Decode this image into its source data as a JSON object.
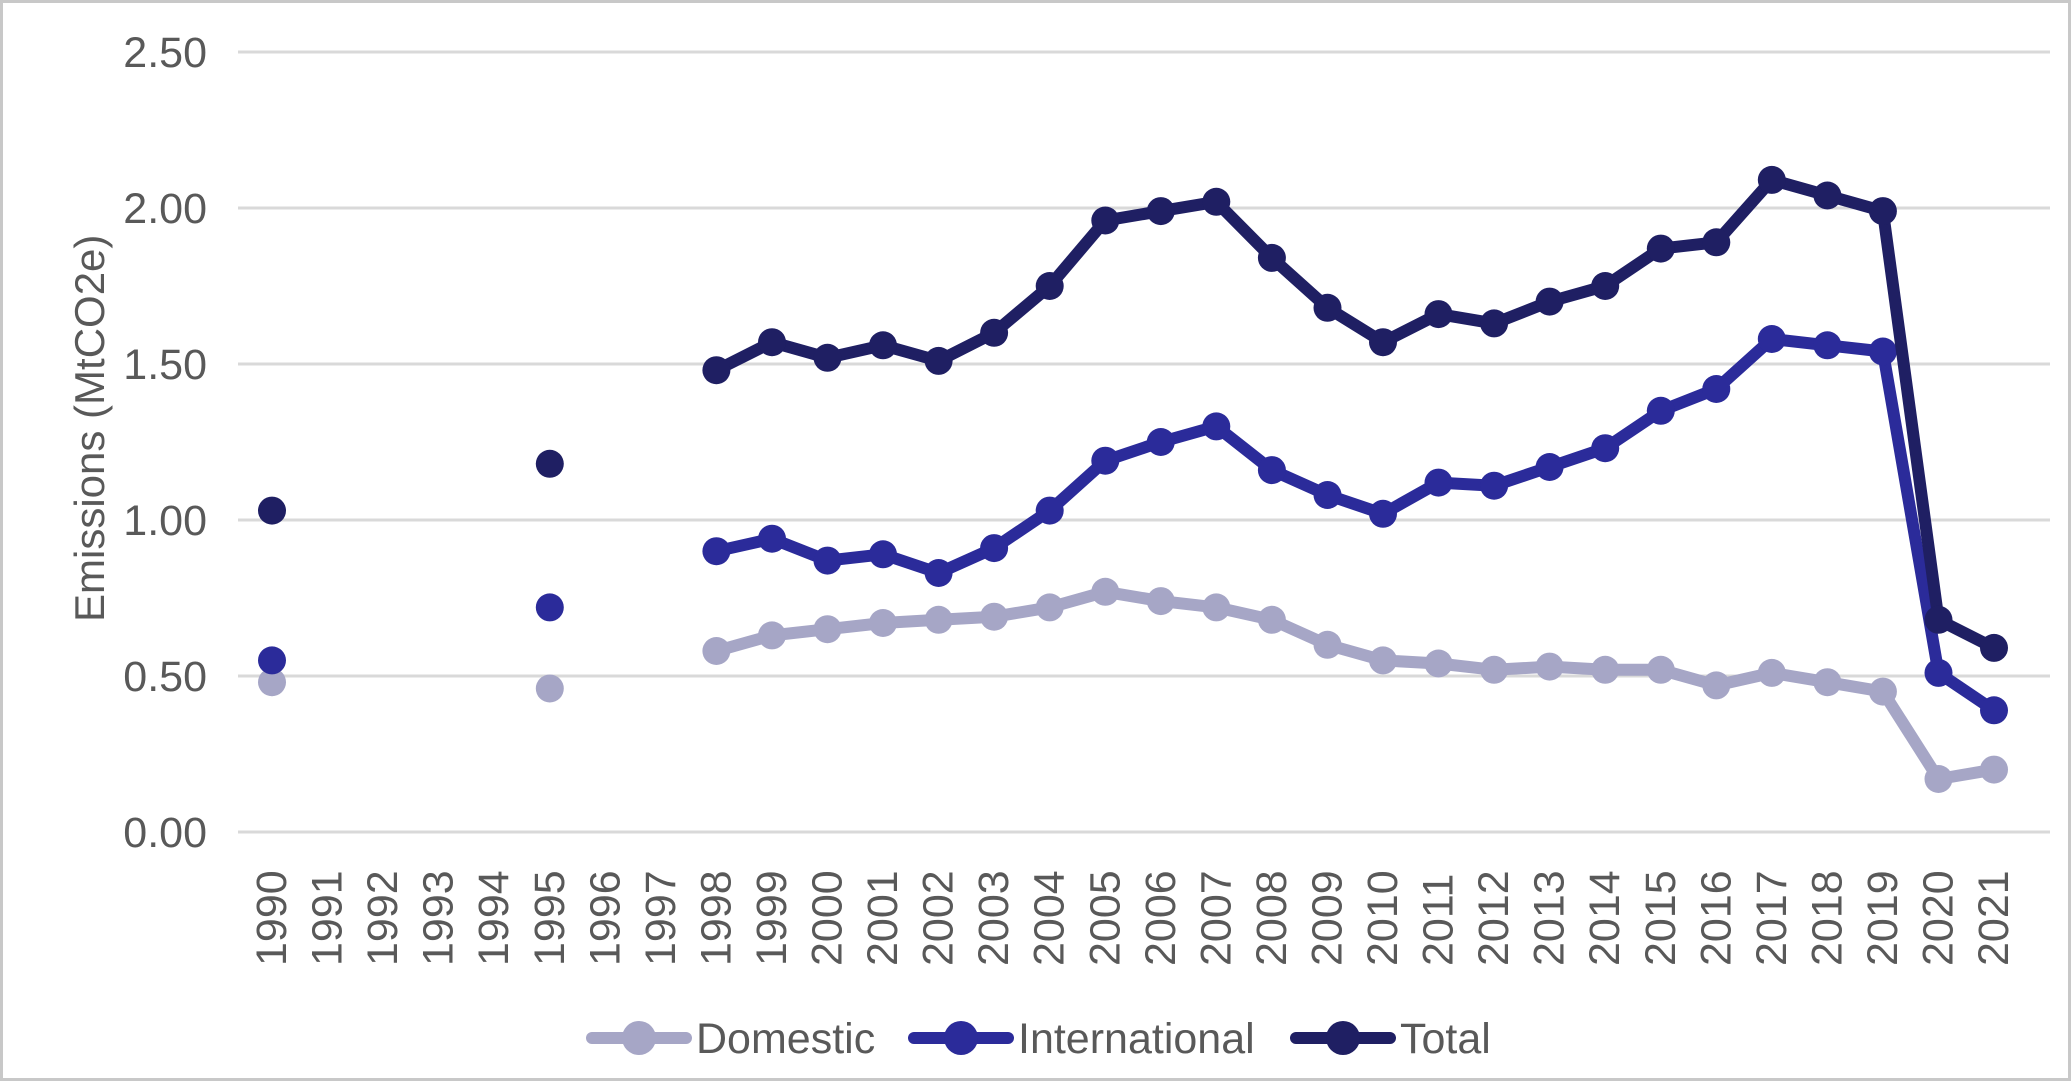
{
  "chart_data": {
    "type": "line",
    "title": "",
    "ylabel": "Emissions (MtCO2e)",
    "xlabel": "",
    "ylim": [
      0,
      2.5
    ],
    "ytick_labels": [
      "0.00",
      "0.50",
      "1.00",
      "1.50",
      "2.00",
      "2.50"
    ],
    "ytick_values": [
      0,
      0.5,
      1,
      1.5,
      2,
      2.5
    ],
    "grid": "horizontal-only",
    "legend_position": "bottom-center",
    "categories": [
      "1990",
      "1991",
      "1992",
      "1993",
      "1994",
      "1995",
      "1996",
      "1997",
      "1998",
      "1999",
      "2000",
      "2001",
      "2002",
      "2003",
      "2004",
      "2005",
      "2006",
      "2007",
      "2008",
      "2009",
      "2010",
      "2011",
      "2012",
      "2013",
      "2014",
      "2015",
      "2016",
      "2017",
      "2018",
      "2019",
      "2020",
      "2021"
    ],
    "series": [
      {
        "name": "Domestic",
        "color": "#A6A6C6",
        "values": [
          0.48,
          null,
          null,
          null,
          null,
          0.46,
          null,
          null,
          0.58,
          0.63,
          0.65,
          0.67,
          0.68,
          0.69,
          0.72,
          0.77,
          0.74,
          0.72,
          0.68,
          0.6,
          0.55,
          0.54,
          0.52,
          0.53,
          0.52,
          0.52,
          0.47,
          0.51,
          0.48,
          0.45,
          0.17,
          0.2
        ]
      },
      {
        "name": "International",
        "color": "#2B2B9A",
        "values": [
          0.55,
          null,
          null,
          null,
          null,
          0.72,
          null,
          null,
          0.9,
          0.94,
          0.87,
          0.89,
          0.83,
          0.91,
          1.03,
          1.19,
          1.25,
          1.3,
          1.16,
          1.08,
          1.02,
          1.12,
          1.11,
          1.17,
          1.23,
          1.35,
          1.42,
          1.58,
          1.56,
          1.54,
          0.51,
          0.39
        ]
      },
      {
        "name": "Total",
        "color": "#1F1F63",
        "values": [
          1.03,
          null,
          null,
          null,
          null,
          1.18,
          null,
          null,
          1.48,
          1.57,
          1.52,
          1.56,
          1.51,
          1.6,
          1.75,
          1.96,
          1.99,
          2.02,
          1.84,
          1.68,
          1.57,
          1.66,
          1.63,
          1.7,
          1.75,
          1.87,
          1.89,
          2.09,
          2.04,
          1.99,
          0.68,
          0.59
        ]
      }
    ],
    "axis_text_color": "#595959",
    "gridline_color": "#D9D9D9",
    "border_color": "#C8C8C8",
    "background_color": "#FFFFFF"
  }
}
